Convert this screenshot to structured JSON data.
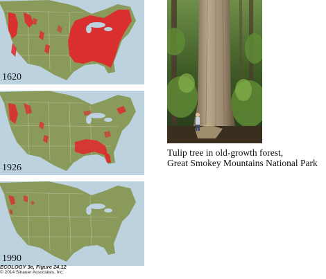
{
  "maps": [
    {
      "year": "1620"
    },
    {
      "year": "1926"
    },
    {
      "year": "1990"
    }
  ],
  "photo": {
    "caption_line1": "Tulip tree in old-growth forest,",
    "caption_line2": "Great Smokey Mountains National Park"
  },
  "credit": {
    "title": "ECOLOGY 3e, Figure 24.12",
    "copyright": "© 2014 Sinauer Associates, Inc."
  },
  "colors": {
    "land": "#8a9a5b",
    "water": "#bcd3df",
    "forest": "#e0262b",
    "border": "#c9c2a8"
  }
}
